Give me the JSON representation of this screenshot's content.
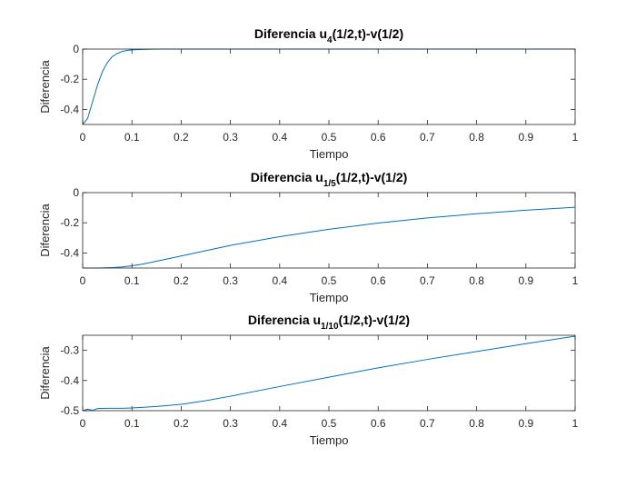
{
  "chart_data": [
    {
      "type": "line",
      "title_prefix": "Diferencia u",
      "title_sub": "4",
      "title_suffix": "(1/2,t)-v(1/2)",
      "xlabel": "Tiempo",
      "ylabel": "Diferencia",
      "xlim": [
        0,
        1
      ],
      "ylim": [
        -0.5,
        0
      ],
      "xticks": [
        0,
        0.1,
        0.2,
        0.3,
        0.4,
        0.5,
        0.6,
        0.7,
        0.8,
        0.9,
        1
      ],
      "xtick_labels": [
        "0",
        "0.1",
        "0.2",
        "0.3",
        "0.4",
        "0.5",
        "0.6",
        "0.7",
        "0.8",
        "0.9",
        "1"
      ],
      "yticks": [
        -0.4,
        -0.2,
        0
      ],
      "ytick_labels": [
        "-0.4",
        "-0.2",
        "0"
      ],
      "series": [
        {
          "name": "u4",
          "color": "#0072bd",
          "x": [
            0,
            0.01,
            0.02,
            0.03,
            0.04,
            0.05,
            0.06,
            0.07,
            0.08,
            0.09,
            0.1,
            0.12,
            0.14,
            0.16,
            0.2,
            0.3,
            0.5,
            0.7,
            1.0
          ],
          "y": [
            -0.5,
            -0.46,
            -0.35,
            -0.24,
            -0.15,
            -0.09,
            -0.05,
            -0.03,
            -0.016,
            -0.009,
            -0.005,
            -0.002,
            -0.001,
            -0.0003,
            0,
            0,
            0,
            0,
            0
          ]
        }
      ]
    },
    {
      "type": "line",
      "title_prefix": "Diferencia u",
      "title_sub": "1/5",
      "title_suffix": "(1/2,t)-v(1/2)",
      "xlabel": "Tiempo",
      "ylabel": "Diferencia",
      "xlim": [
        0,
        1
      ],
      "ylim": [
        -0.5,
        0
      ],
      "xticks": [
        0,
        0.1,
        0.2,
        0.3,
        0.4,
        0.5,
        0.6,
        0.7,
        0.8,
        0.9,
        1
      ],
      "xtick_labels": [
        "0",
        "0.1",
        "0.2",
        "0.3",
        "0.4",
        "0.5",
        "0.6",
        "0.7",
        "0.8",
        "0.9",
        "1"
      ],
      "yticks": [
        -0.4,
        -0.2,
        0
      ],
      "ytick_labels": [
        "-0.4",
        "-0.2",
        "0"
      ],
      "series": [
        {
          "name": "u1/5",
          "color": "#0072bd",
          "x": [
            0,
            0.02,
            0.04,
            0.06,
            0.08,
            0.1,
            0.12,
            0.15,
            0.2,
            0.25,
            0.3,
            0.4,
            0.5,
            0.6,
            0.7,
            0.8,
            0.9,
            1.0
          ],
          "y": [
            -0.5,
            -0.5,
            -0.499,
            -0.497,
            -0.493,
            -0.485,
            -0.475,
            -0.455,
            -0.42,
            -0.385,
            -0.35,
            -0.292,
            -0.243,
            -0.202,
            -0.168,
            -0.14,
            -0.117,
            -0.097
          ]
        }
      ]
    },
    {
      "type": "line",
      "title_prefix": "Diferencia u",
      "title_sub": "1/10",
      "title_suffix": "(1/2,t)-v(1/2)",
      "xlabel": "Tiempo",
      "ylabel": "Diferencia",
      "xlim": [
        0,
        1
      ],
      "ylim": [
        -0.5,
        -0.25
      ],
      "xticks": [
        0,
        0.1,
        0.2,
        0.3,
        0.4,
        0.5,
        0.6,
        0.7,
        0.8,
        0.9,
        1
      ],
      "xtick_labels": [
        "0",
        "0.1",
        "0.2",
        "0.3",
        "0.4",
        "0.5",
        "0.6",
        "0.7",
        "0.8",
        "0.9",
        "1"
      ],
      "yticks": [
        -0.5,
        -0.4,
        -0.3
      ],
      "ytick_labels": [
        "-0.5",
        "-0.4",
        "-0.3"
      ],
      "series": [
        {
          "name": "u1/10",
          "color": "#0072bd",
          "x": [
            0,
            0.01,
            0.02,
            0.03,
            0.05,
            0.08,
            0.1,
            0.12,
            0.15,
            0.2,
            0.25,
            0.3,
            0.4,
            0.5,
            0.6,
            0.7,
            0.8,
            0.9,
            1.0
          ],
          "y": [
            -0.5,
            -0.495,
            -0.499,
            -0.493,
            -0.492,
            -0.492,
            -0.491,
            -0.489,
            -0.486,
            -0.479,
            -0.467,
            -0.452,
            -0.42,
            -0.389,
            -0.358,
            -0.33,
            -0.304,
            -0.278,
            -0.253
          ]
        }
      ]
    }
  ]
}
